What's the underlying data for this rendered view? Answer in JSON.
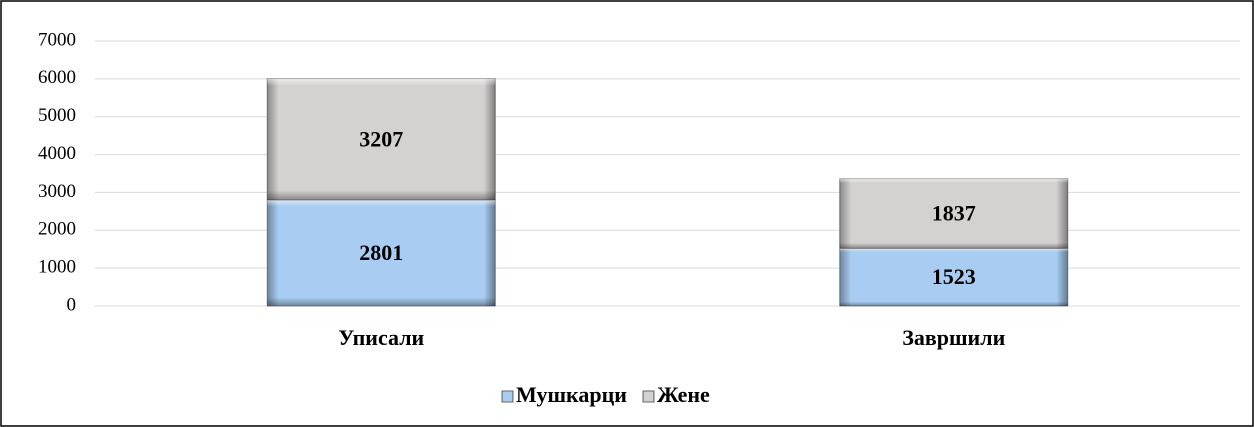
{
  "chart_data": {
    "type": "bar",
    "stacked": true,
    "categories": [
      "Уписали",
      "Завршили"
    ],
    "series": [
      {
        "name": "Мушкарци",
        "color": "#a9cdf2",
        "values": [
          2801,
          1523
        ]
      },
      {
        "name": "Жене",
        "color": "#d4d1d1",
        "values": [
          3207,
          1837
        ]
      }
    ],
    "ylim": [
      0,
      7000
    ],
    "yticks": [
      0,
      1000,
      2000,
      3000,
      4000,
      5000,
      6000,
      7000
    ],
    "grid": true,
    "legend": "bottom"
  }
}
